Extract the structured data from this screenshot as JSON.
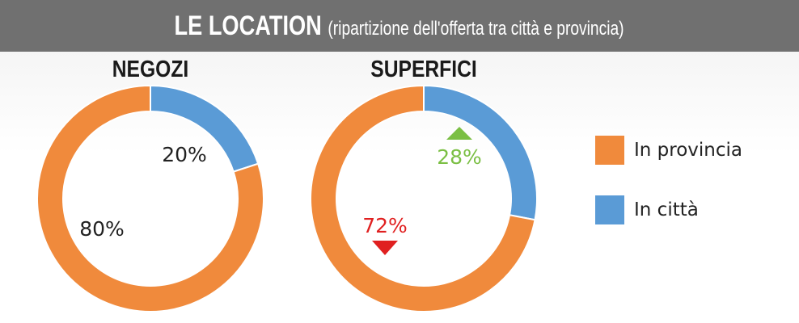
{
  "header": {
    "title": "LE LOCATION",
    "subtitle": "(ripartizione dell'offerta tra città e provincia)"
  },
  "colors": {
    "provincia": "#f08a3c",
    "citta": "#5a9bd6",
    "up": "#7bbf44",
    "down": "#e02020"
  },
  "chart_data": [
    {
      "type": "pie",
      "title": "NEGOZI",
      "categories": [
        "In provincia",
        "In città"
      ],
      "values": [
        80,
        20
      ],
      "labels": [
        "80%",
        "20%"
      ]
    },
    {
      "type": "pie",
      "title": "SUPERFICI",
      "categories": [
        "In provincia",
        "In città"
      ],
      "values": [
        72,
        28
      ],
      "labels": [
        "72%",
        "28%"
      ],
      "trend": [
        "down",
        "up"
      ]
    }
  ],
  "legend": [
    {
      "label": "In provincia",
      "color": "#f08a3c"
    },
    {
      "label": "In città",
      "color": "#5a9bd6"
    }
  ]
}
